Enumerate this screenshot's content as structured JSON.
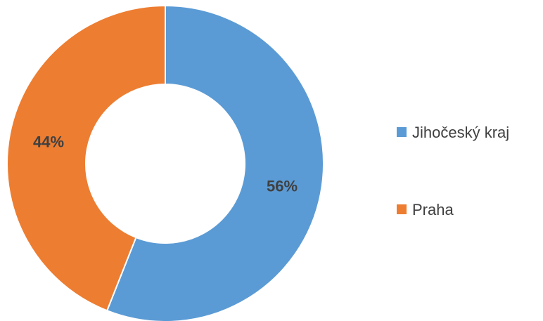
{
  "chart_data": {
    "type": "pie",
    "variant": "donut",
    "title": "",
    "series": [
      {
        "values": [
          {
            "label": "Jihočeský kraj",
            "value": 56,
            "display": "56%",
            "color": "#5B9BD5"
          },
          {
            "label": "Praha",
            "value": 44,
            "display": "44%",
            "color": "#ED7D31"
          }
        ]
      }
    ],
    "legend": {
      "position": "right",
      "entries": [
        "Jihočeský kraj",
        "Praha"
      ]
    }
  }
}
